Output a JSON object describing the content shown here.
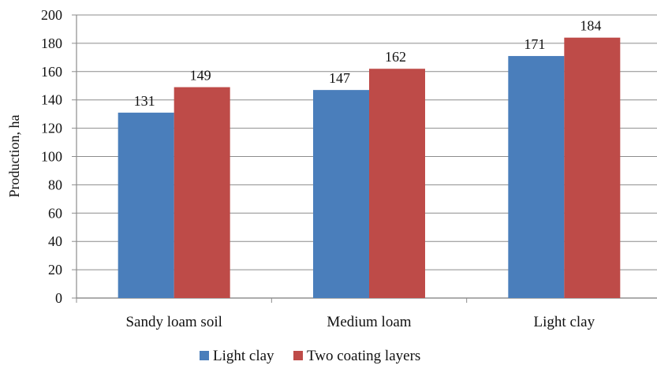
{
  "chart_data": {
    "type": "bar",
    "title": "",
    "xlabel": "",
    "ylabel": "Production, ha",
    "ylim": [
      0,
      200
    ],
    "ytick_step": 20,
    "grid": true,
    "legend_position": "bottom",
    "categories": [
      "Sandy loam soil",
      "Medium loam",
      "Light clay"
    ],
    "series": [
      {
        "name": "Light clay",
        "color": "#4A7EBB",
        "values": [
          131,
          147,
          171
        ]
      },
      {
        "name": "Two coating layers",
        "color": "#BE4B48",
        "values": [
          149,
          162,
          184
        ]
      }
    ]
  }
}
